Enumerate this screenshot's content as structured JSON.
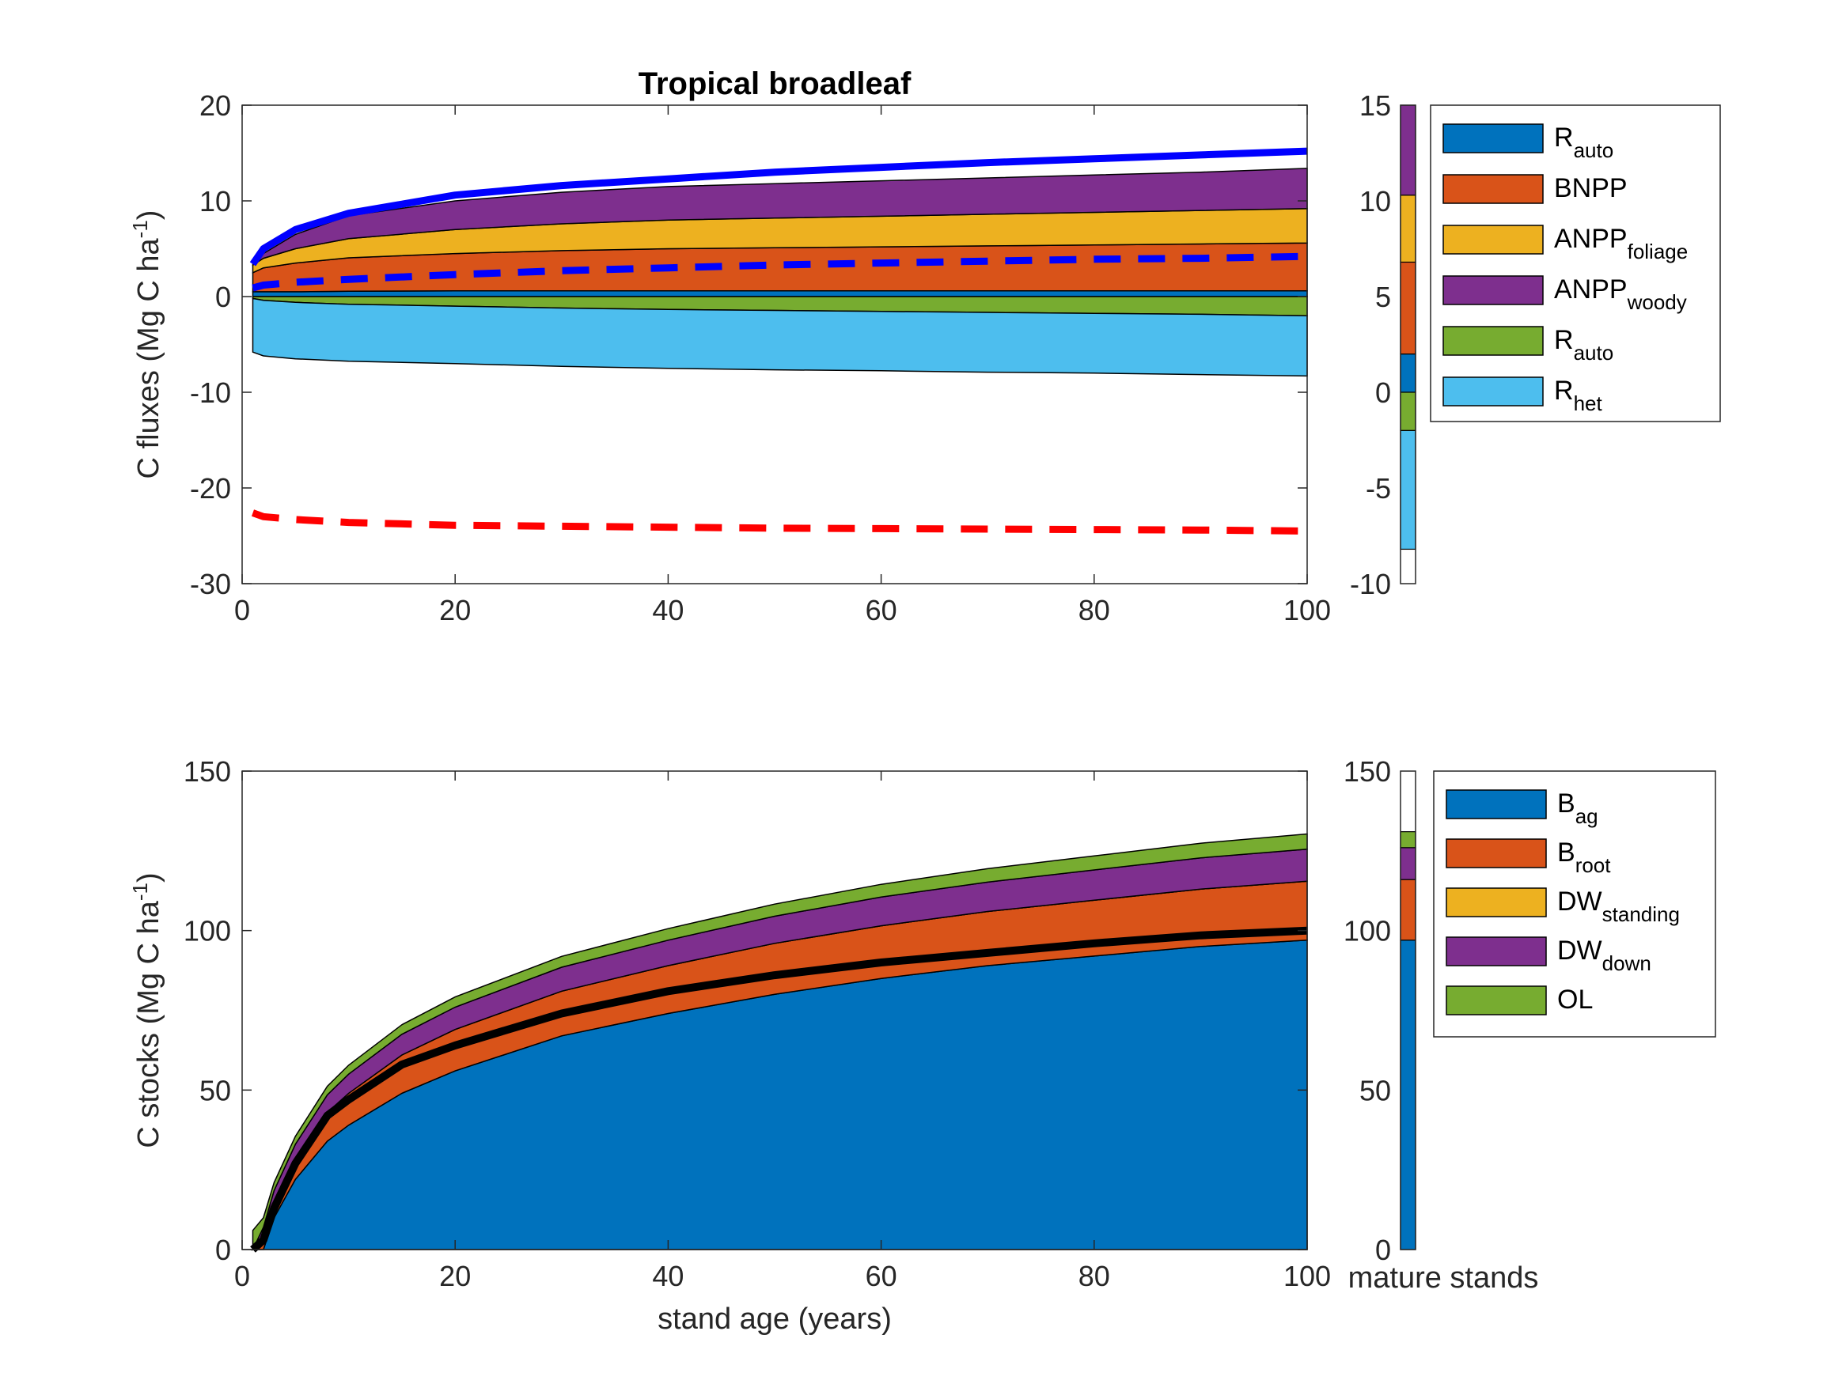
{
  "colors": {
    "blue": "#0072BD",
    "orange": "#D95319",
    "yellow": "#EDB120",
    "purple": "#7E2F8E",
    "green": "#77AC30",
    "lightblue": "#4DBEEE",
    "gpp_line": "#0000FF",
    "nep_line": "#FF0000",
    "black": "#000000"
  },
  "chart_data": [
    {
      "type": "area",
      "title": "Tropical broadleaf",
      "xlabel": "",
      "ylabel": "C  fluxes (Mg C ha",
      "ylabel_sup": "-1",
      "ylabel_close": ")",
      "xlim": [
        0,
        100
      ],
      "ylim": [
        -30,
        20
      ],
      "xticks": [
        0,
        20,
        40,
        60,
        80,
        100
      ],
      "yticks": [
        -30,
        -20,
        -10,
        0,
        10,
        20
      ],
      "x": [
        1,
        2,
        5,
        10,
        20,
        30,
        40,
        50,
        60,
        70,
        80,
        90,
        100
      ],
      "stacks_positive": [
        {
          "key": "r_auto_pos",
          "color_key": "blue",
          "values": [
            0.5,
            0.5,
            0.5,
            0.55,
            0.6,
            0.6,
            0.6,
            0.6,
            0.6,
            0.6,
            0.6,
            0.6,
            0.6
          ]
        },
        {
          "key": "bnpp",
          "color_key": "orange",
          "values": [
            2.0,
            2.5,
            3.0,
            3.5,
            3.9,
            4.2,
            4.4,
            4.5,
            4.6,
            4.7,
            4.8,
            4.9,
            5.0
          ]
        },
        {
          "key": "anpp_foliage",
          "color_key": "yellow",
          "values": [
            0.8,
            1.0,
            1.5,
            2.0,
            2.5,
            2.8,
            3.0,
            3.1,
            3.2,
            3.3,
            3.4,
            3.5,
            3.6
          ]
        },
        {
          "key": "anpp_woody",
          "color_key": "purple",
          "values": [
            0.3,
            0.5,
            1.5,
            2.4,
            3.0,
            3.3,
            3.5,
            3.6,
            3.7,
            3.8,
            3.9,
            4.0,
            4.2
          ]
        }
      ],
      "stacks_negative": [
        {
          "key": "r_auto_neg",
          "color_key": "green",
          "values": [
            -0.2,
            -0.4,
            -0.6,
            -0.8,
            -1.0,
            -1.2,
            -1.35,
            -1.45,
            -1.55,
            -1.65,
            -1.75,
            -1.85,
            -2.0
          ]
        },
        {
          "key": "r_het",
          "color_key": "lightblue",
          "values": [
            -5.6,
            -5.8,
            -5.9,
            -5.95,
            -6.0,
            -6.1,
            -6.15,
            -6.2,
            -6.2,
            -6.25,
            -6.25,
            -6.3,
            -6.3
          ]
        }
      ],
      "lines": [
        {
          "key": "gpp",
          "color_key": "gpp_line",
          "style": "solid",
          "values": [
            3.4,
            5.0,
            7.0,
            8.7,
            10.6,
            11.6,
            12.3,
            13.0,
            13.5,
            14.0,
            14.4,
            14.8,
            15.2
          ]
        },
        {
          "key": "nep",
          "color_key": "gpp_line",
          "style": "dashed",
          "values": [
            0.9,
            1.2,
            1.5,
            1.8,
            2.3,
            2.7,
            3.0,
            3.3,
            3.5,
            3.7,
            3.9,
            4.0,
            4.2
          ]
        },
        {
          "key": "resp",
          "color_key": "nep_line",
          "style": "dashed",
          "values": [
            -22.6,
            -23.0,
            -23.3,
            -23.6,
            -23.9,
            -24.0,
            -24.1,
            -24.2,
            -24.25,
            -24.3,
            -24.35,
            -24.4,
            -24.5
          ]
        }
      ],
      "mature_bar": {
        "ylim": [
          -10,
          15
        ],
        "yticks": [
          -10,
          -5,
          0,
          5,
          10,
          15
        ],
        "segments_positive": [
          {
            "color_key": "blue",
            "value": 2.0
          },
          {
            "color_key": "orange",
            "value": 4.8
          },
          {
            "color_key": "yellow",
            "value": 3.5
          },
          {
            "color_key": "purple",
            "value": 4.7
          }
        ],
        "segments_negative": [
          {
            "color_key": "green",
            "value": -2.0
          },
          {
            "color_key": "lightblue",
            "value": -6.2
          }
        ]
      },
      "legend": [
        {
          "main": "R",
          "sub": "auto",
          "color_key": "blue"
        },
        {
          "main": "BNPP",
          "sub": "",
          "color_key": "orange"
        },
        {
          "main": "ANPP",
          "sub": "foliage",
          "color_key": "yellow"
        },
        {
          "main": "ANPP",
          "sub": "woody",
          "color_key": "purple"
        },
        {
          "main": "R",
          "sub": "auto",
          "color_key": "green"
        },
        {
          "main": "R",
          "sub": "het",
          "color_key": "lightblue"
        }
      ]
    },
    {
      "type": "area",
      "title": "",
      "xlabel": "stand age (years)",
      "ylabel": "C  stocks (Mg C ha",
      "ylabel_sup": "-1",
      "ylabel_close": ")",
      "xlim": [
        0,
        100
      ],
      "ylim": [
        0,
        150
      ],
      "xticks": [
        0,
        20,
        40,
        60,
        80,
        100
      ],
      "yticks": [
        0,
        50,
        100,
        150
      ],
      "x": [
        1,
        2,
        3,
        5,
        8,
        10,
        15,
        20,
        30,
        40,
        50,
        60,
        70,
        80,
        90,
        100
      ],
      "stacks_positive": [
        {
          "key": "b_ag",
          "color_key": "blue",
          "values": [
            0,
            0,
            10,
            22,
            34,
            39,
            49,
            56,
            67,
            74,
            80,
            85,
            89,
            92,
            95,
            97
          ]
        },
        {
          "key": "b_root",
          "color_key": "orange",
          "values": [
            0,
            2,
            4,
            6,
            9,
            10,
            12,
            13,
            14,
            15,
            16,
            16.5,
            17,
            17.5,
            18,
            18.5
          ]
        },
        {
          "key": "dw_standing",
          "color_key": "yellow",
          "values": [
            0,
            0,
            0,
            0,
            0,
            0,
            0,
            0,
            0,
            0,
            0,
            0,
            0,
            0,
            0,
            0
          ]
        },
        {
          "key": "dw_down",
          "color_key": "purple",
          "values": [
            0,
            5,
            4.5,
            5,
            5.5,
            6,
            6.5,
            7,
            7.5,
            8,
            8.5,
            9,
            9.2,
            9.5,
            9.8,
            10
          ]
        },
        {
          "key": "ol",
          "color_key": "green",
          "values": [
            6,
            3,
            2.5,
            2.5,
            2.7,
            2.8,
            3.0,
            3.2,
            3.4,
            3.6,
            3.8,
            4.0,
            4.2,
            4.4,
            4.6,
            4.8
          ]
        }
      ],
      "lines": [
        {
          "key": "total_biomass",
          "color_key": "black",
          "style": "solid",
          "values": [
            0,
            3,
            13,
            27,
            42,
            47,
            58,
            64,
            74,
            81,
            86,
            90,
            93,
            96,
            98.5,
            100
          ]
        }
      ],
      "mature_bar": {
        "xlabel": "mature stands",
        "ylim": [
          0,
          150
        ],
        "yticks": [
          0,
          50,
          100,
          150
        ],
        "segments_positive": [
          {
            "color_key": "blue",
            "value": 97
          },
          {
            "color_key": "orange",
            "value": 19
          },
          {
            "color_key": "yellow",
            "value": 0
          },
          {
            "color_key": "purple",
            "value": 10
          },
          {
            "color_key": "green",
            "value": 5
          }
        ],
        "segments_negative": []
      },
      "legend": [
        {
          "main": "B",
          "sub": "ag",
          "color_key": "blue"
        },
        {
          "main": "B",
          "sub": "root",
          "color_key": "orange"
        },
        {
          "main": "DW",
          "sub": "standing",
          "color_key": "yellow"
        },
        {
          "main": "DW",
          "sub": "down",
          "color_key": "purple"
        },
        {
          "main": "OL",
          "sub": "",
          "color_key": "green"
        }
      ]
    }
  ]
}
